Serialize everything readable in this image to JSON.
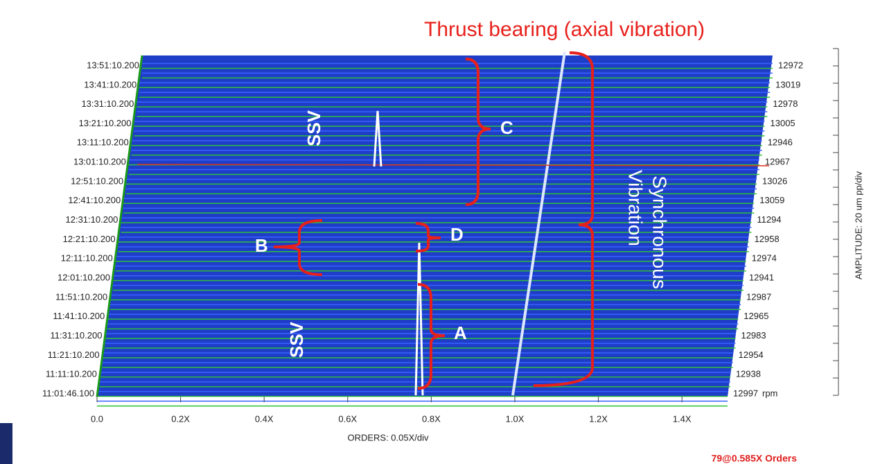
{
  "chart_data": {
    "type": "waterfall",
    "categories": [
      "13:51:10.200",
      "13:41:10.200",
      "13:31:10.200",
      "13:21:10.200",
      "13:11:10.200",
      "13:01:10.200",
      "12:51:10.200",
      "12:41:10.200",
      "12:31:10.200",
      "12:21:10.200",
      "12:11:10.200",
      "12:01:10.200",
      "11:51:10.200",
      "11:41:10.200",
      "11:31:10.200",
      "11:21:10.200",
      "11:11:10.200",
      "11:01:46.100"
    ],
    "rpm": [
      12972,
      13019,
      12978,
      13005,
      12946,
      12967,
      13026,
      13059,
      11294,
      12958,
      12974,
      12941,
      12987,
      12965,
      12983,
      12954,
      12938,
      12997
    ],
    "rpm_unit": "rpm",
    "xlim": [
      0,
      1.5
    ],
    "xticks": [
      {
        "value": 0,
        "label": "0.0"
      },
      {
        "value": 0.2,
        "label": "0.2X"
      },
      {
        "value": 0.4,
        "label": "0.4X"
      },
      {
        "value": 0.6,
        "label": "0.6X"
      },
      {
        "value": 0.8,
        "label": "0.8X"
      },
      {
        "value": 1.0,
        "label": "1.0X"
      },
      {
        "value": 1.2,
        "label": "1.2X"
      },
      {
        "value": 1.4,
        "label": "1.4X"
      }
    ],
    "x_label": "ORDERS: 0.05X/div",
    "y2_label": "AMPLITUDE: 20 um pp/div",
    "cursor_label": "79@0.585X Orders",
    "annotations": {
      "thrust": "Thrust bearing (axial vibration)",
      "ssv_top": "SSV",
      "ssv_bottom": "SSV",
      "c": "C",
      "b": "B",
      "d": "D",
      "a": "A",
      "sync_1": "Synchronous",
      "sync_2": "Vibration"
    }
  }
}
